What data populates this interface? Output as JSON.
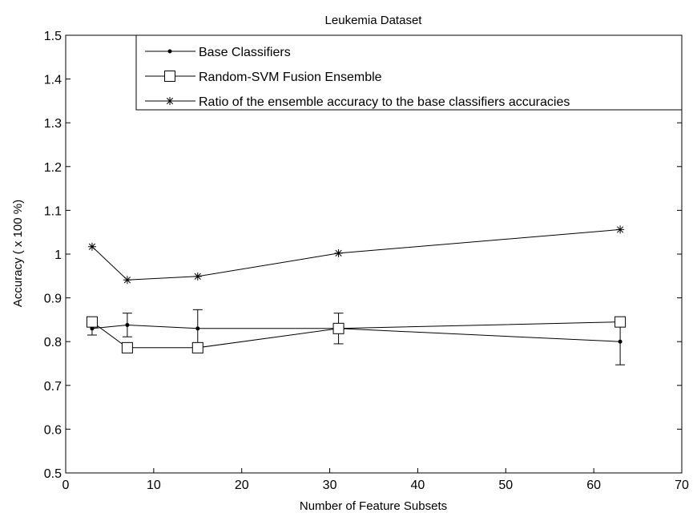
{
  "chart_data": {
    "type": "line",
    "title": "Leukemia Dataset",
    "xlabel": "Number of Feature Subsets",
    "ylabel": "Accuracy ( x 100 %)",
    "xlim": [
      0,
      70
    ],
    "ylim": [
      0.5,
      1.5
    ],
    "xticks": [
      0,
      10,
      20,
      30,
      40,
      50,
      60,
      70
    ],
    "yticks": [
      0.5,
      0.6,
      0.7,
      0.8,
      0.9,
      1,
      1.1,
      1.2,
      1.3,
      1.4,
      1.5
    ],
    "xtick_labels": [
      "0",
      "10",
      "20",
      "30",
      "40",
      "50",
      "60",
      "70"
    ],
    "ytick_labels": [
      "0.5",
      "0.6",
      "0.7",
      "0.8",
      "0.9",
      "1",
      "1.1",
      "1.2",
      "1.3",
      "1.4",
      "1.5"
    ],
    "grid": false,
    "legend_position": "top-right",
    "x": [
      3,
      7,
      15,
      31,
      63
    ],
    "series": [
      {
        "name": "Base Classifiers",
        "marker": "dot",
        "values": [
          0.83,
          0.838,
          0.83,
          0.83,
          0.8
        ],
        "error": [
          0.015,
          0.027,
          0.043,
          0.035,
          0.053
        ]
      },
      {
        "name": "Random-SVM Fusion Ensemble",
        "marker": "square",
        "values": [
          0.845,
          0.786,
          0.786,
          0.83,
          0.845
        ]
      },
      {
        "name": "Ratio of the ensemble accuracy to the base classifiers accuracies",
        "marker": "asterisk",
        "values": [
          1.017,
          0.941,
          0.949,
          1.002,
          1.056
        ]
      }
    ]
  }
}
